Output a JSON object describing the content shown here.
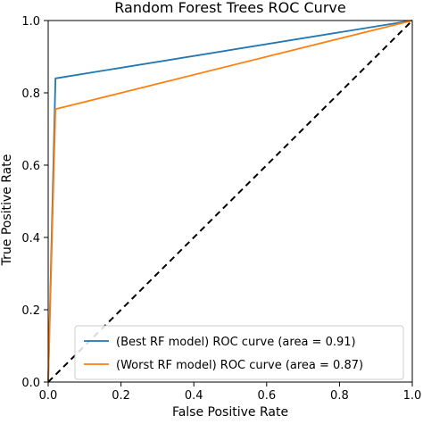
{
  "chart_data": {
    "type": "line",
    "title": "Random Forest Trees ROC Curve",
    "xlabel": "False Positive Rate",
    "ylabel": "True Positive Rate",
    "xlim": [
      0.0,
      1.0
    ],
    "ylim": [
      0.0,
      1.0
    ],
    "x_ticks": [
      "0.0",
      "0.2",
      "0.4",
      "0.6",
      "0.8",
      "1.0"
    ],
    "y_ticks": [
      "0.0",
      "0.2",
      "0.4",
      "0.6",
      "0.8",
      "1.0"
    ],
    "grid": false,
    "legend_position": "lower-right",
    "series": [
      {
        "name": "(Best RF model) ROC curve (area = 0.91)",
        "color": "#1f77b4",
        "line_style": "solid",
        "x": [
          0.0,
          0.02,
          1.0
        ],
        "y": [
          0.0,
          0.84,
          1.0
        ]
      },
      {
        "name": "(Worst RF model) ROC curve (area = 0.87)",
        "color": "#ff7f0e",
        "line_style": "solid",
        "x": [
          0.0,
          0.02,
          1.0
        ],
        "y": [
          0.0,
          0.755,
          1.0
        ]
      },
      {
        "color": "#000000",
        "line_style": "dashed",
        "x": [
          0.0,
          1.0
        ],
        "y": [
          0.0,
          1.0
        ]
      }
    ]
  }
}
